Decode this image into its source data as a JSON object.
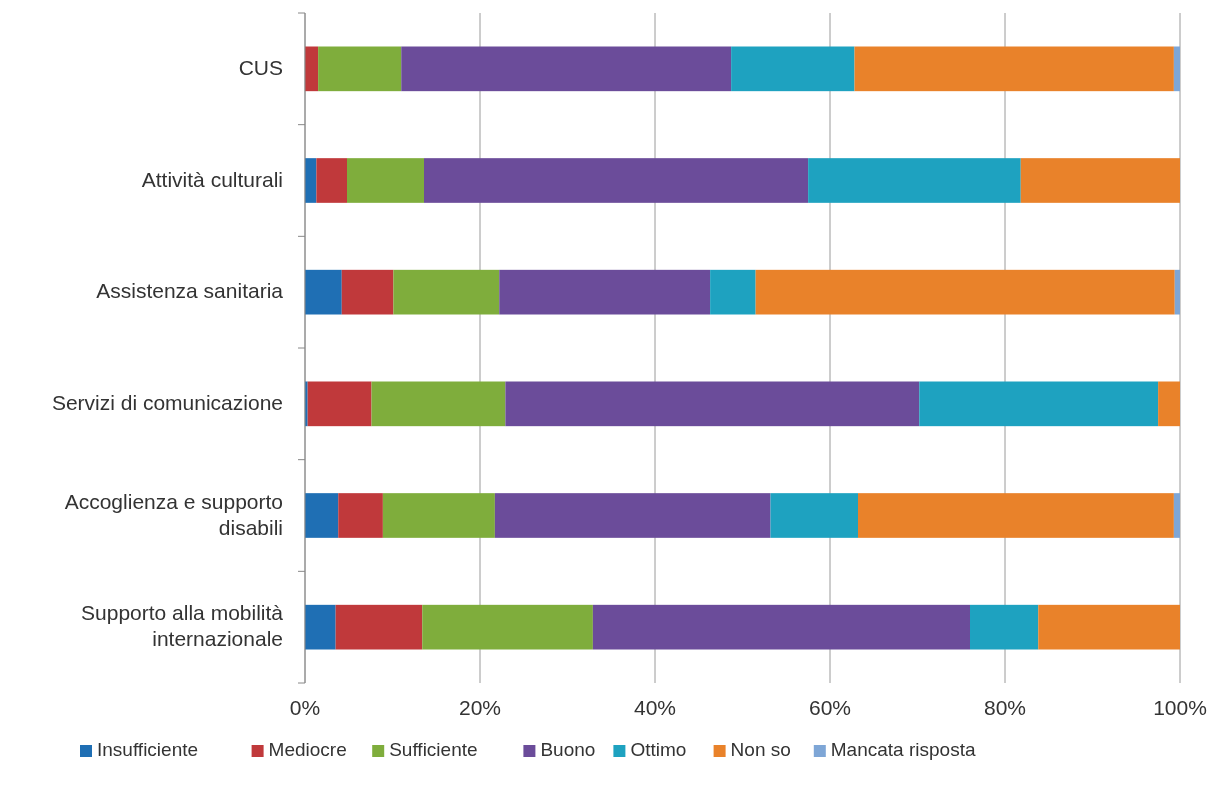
{
  "chart_data": {
    "type": "bar",
    "orientation": "horizontal",
    "stacked": true,
    "grid": "x",
    "legend": "bottom",
    "categories": [
      "CUS",
      "Attività culturali",
      "Assistenza sanitaria",
      "Servizi di comunicazione",
      "Accoglienza e supporto disabili",
      "Supporto alla mobilità internazionale"
    ],
    "xlim": [
      0,
      100
    ],
    "xticks": [
      {
        "value": 0,
        "label": "0%"
      },
      {
        "value": 20,
        "label": "20%"
      },
      {
        "value": 40,
        "label": "40%"
      },
      {
        "value": 60,
        "label": "60%"
      },
      {
        "value": 80,
        "label": "80%"
      },
      {
        "value": 100,
        "label": "100%"
      }
    ],
    "series": [
      {
        "name": "Insufficiente",
        "color": "#1f6fb4",
        "values": [
          0,
          1.3,
          4.2,
          0.3,
          3.8,
          3.5
        ]
      },
      {
        "name": "Mediocre",
        "color": "#c0393b",
        "values": [
          1.5,
          3.5,
          5.9,
          7.3,
          5.1,
          9.9
        ]
      },
      {
        "name": "Sufficiente",
        "color": "#7fad3c",
        "values": [
          9.5,
          8.8,
          12.1,
          15.3,
          12.8,
          19.5
        ]
      },
      {
        "name": "Buono",
        "color": "#6b4c9a",
        "values": [
          37.7,
          43.9,
          24.1,
          47.3,
          31.5,
          43.1
        ]
      },
      {
        "name": "Ottimo",
        "color": "#1ea2c0",
        "values": [
          14.1,
          24.3,
          5.2,
          27.3,
          10.0,
          7.8
        ]
      },
      {
        "name": "Non so",
        "color": "#e9822a",
        "values": [
          36.5,
          18.2,
          47.9,
          2.5,
          36.1,
          16.2
        ]
      },
      {
        "name": "Mancata risposta",
        "color": "#7ea6d6",
        "values": [
          0.7,
          0,
          0.6,
          0,
          0.7,
          0
        ]
      }
    ]
  }
}
